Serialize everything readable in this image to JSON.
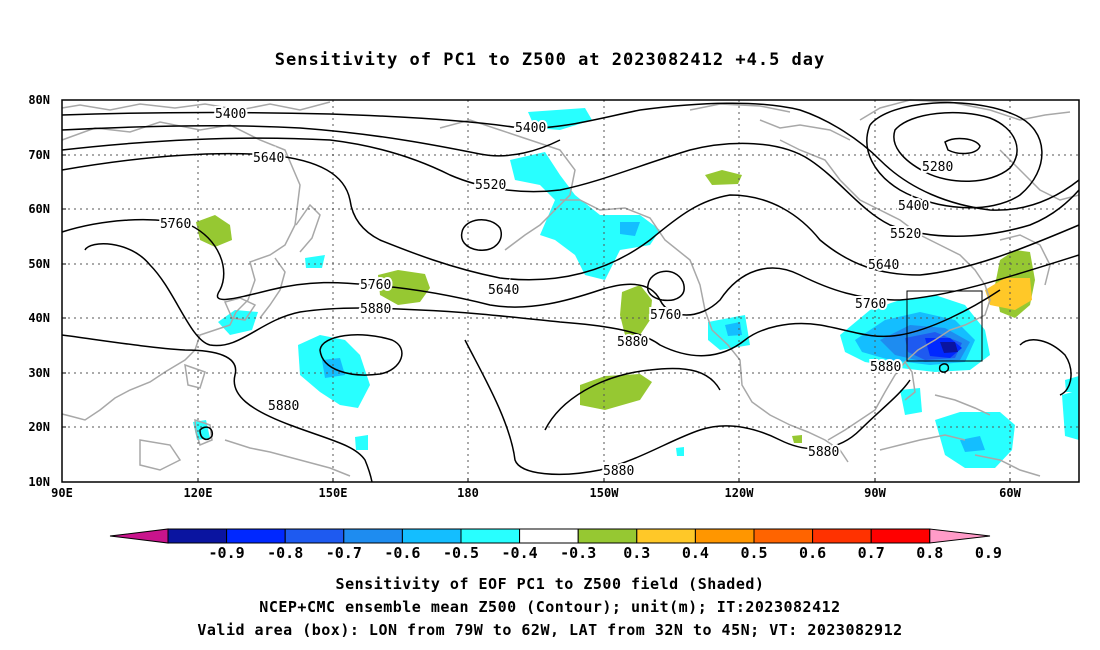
{
  "title": "Sensitivity of PC1 to Z500 at 2023082412 +4.5 day",
  "captions": [
    "Sensitivity of EOF PC1 to Z500 field (Shaded)",
    "NCEP+CMC ensemble mean Z500 (Contour); unit(m); IT:2023082412",
    "Valid area (box): LON from 79W to 62W, LAT from 32N to 45N; VT: 2023082912"
  ],
  "axes": {
    "lon_ticks": [
      "90E",
      "120E",
      "150E",
      "180",
      "150W",
      "120W",
      "90W",
      "60W"
    ],
    "lat_ticks": [
      "80N",
      "70N",
      "60N",
      "50N",
      "40N",
      "30N",
      "20N",
      "10N"
    ]
  },
  "contour_labels": [
    "5400",
    "5400",
    "5640",
    "5520",
    "5760",
    "5760",
    "5880",
    "5640",
    "5760",
    "5880",
    "5280",
    "5400",
    "5520",
    "5640",
    "5760",
    "5880",
    "5880",
    "5880",
    "5880"
  ],
  "colorbar": {
    "labels": [
      "-0.9",
      "-0.8",
      "-0.7",
      "-0.6",
      "-0.5",
      "-0.4",
      "-0.3",
      "0.3",
      "0.4",
      "0.5",
      "0.6",
      "0.7",
      "0.8",
      "0.9"
    ],
    "colors": [
      "#0a14a0",
      "#0028ff",
      "#1e5af0",
      "#1e8cf0",
      "#14beff",
      "#28ffff",
      "#ffffff",
      "#96c832",
      "#ffc828",
      "#ff9600",
      "#ff6400",
      "#ff3200",
      "#ff0000"
    ],
    "low_end_color": "#c8148c",
    "high_end_color": "#ff9bc8"
  },
  "valid_box": {
    "lon_min": -79,
    "lon_max": -62,
    "lat_min": 32,
    "lat_max": 45
  }
}
